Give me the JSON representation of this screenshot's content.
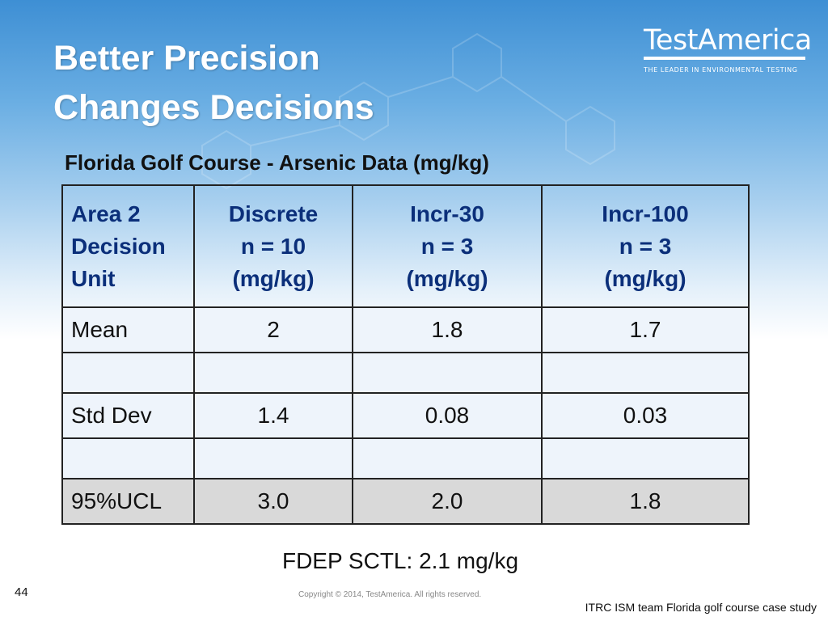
{
  "title_lines": [
    "Better Precision",
    "Changes Decisions"
  ],
  "logo": {
    "name": "TestAmerica",
    "tagline": "THE LEADER IN ENVIRONMENTAL TESTING"
  },
  "table_title": "Florida Golf Course - Arsenic Data (mg/kg)",
  "table": {
    "header": [
      [
        "Area 2",
        "Decision",
        "Unit"
      ],
      [
        "Discrete",
        "n = 10",
        "(mg/kg)"
      ],
      [
        "Incr-30",
        "n = 3",
        "(mg/kg)"
      ],
      [
        "Incr-100",
        "n = 3",
        "(mg/kg)"
      ]
    ],
    "rows": [
      [
        "Mean",
        "2",
        "1.8",
        "1.7"
      ],
      [
        "",
        "",
        "",
        ""
      ],
      [
        "Std Dev",
        "1.4",
        "0.08",
        "0.03"
      ],
      [
        "",
        "",
        "",
        ""
      ],
      [
        "95%UCL",
        "3.0",
        "2.0",
        "1.8"
      ]
    ]
  },
  "sctl_note": "FDEP SCTL: 2.1 mg/kg",
  "page_number": "44",
  "copyright": "Copyright © 2014, TestAmerica.  All rights reserved.",
  "citation": "ITRC ISM team Florida golf course case study",
  "colors": {
    "header_text": "#0b2f7a",
    "background_top": "#3e8fd4",
    "ucl_row": "#d9d9d9"
  }
}
